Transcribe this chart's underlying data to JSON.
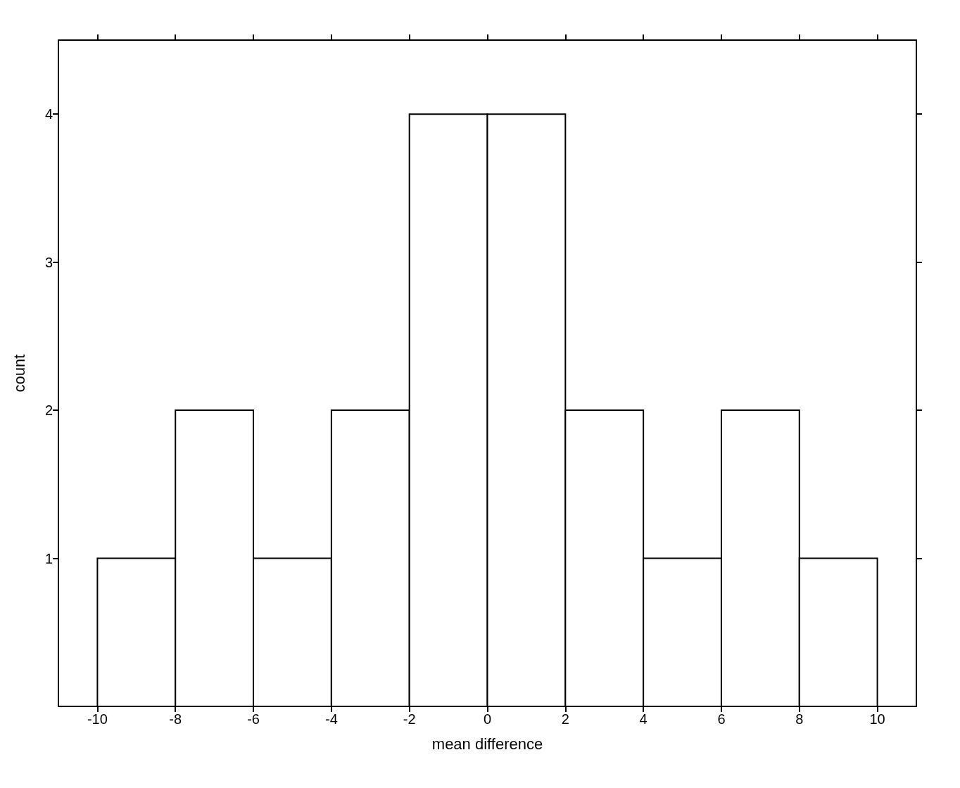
{
  "chart_data": {
    "type": "histogram",
    "xlabel": "mean difference",
    "ylabel": "count",
    "bins": [
      -10,
      -8,
      -6,
      -4,
      -2,
      0,
      2,
      4,
      6,
      8,
      10
    ],
    "values": [
      1,
      2,
      1,
      2,
      4,
      4,
      2,
      1,
      2,
      1
    ],
    "color": "#ffffff",
    "xlim": [
      -11,
      11
    ],
    "xticks": [
      -10,
      -8,
      -6,
      -4,
      -2,
      0,
      2,
      4,
      6,
      8,
      10
    ],
    "ylim": [
      0,
      4.5
    ],
    "yticks": [
      1,
      2,
      3,
      4
    ],
    "grid": false
  }
}
